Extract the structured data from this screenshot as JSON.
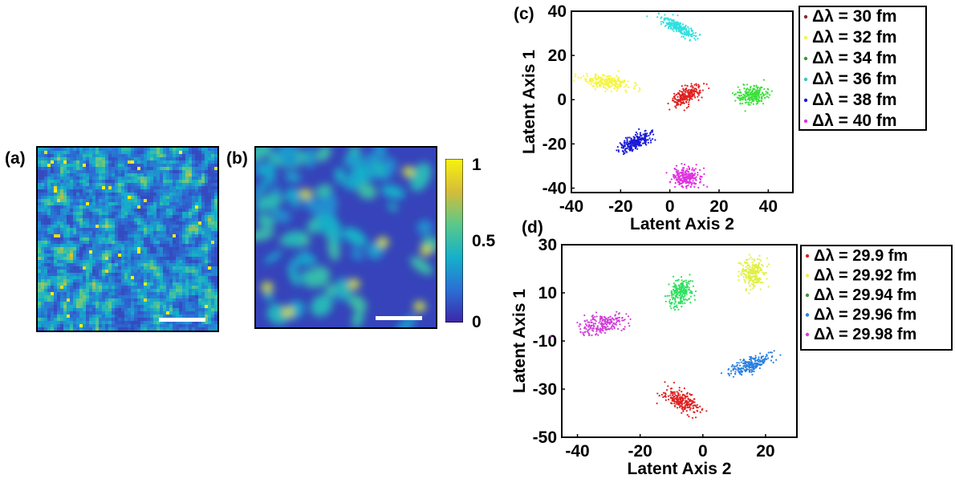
{
  "panels": {
    "a": {
      "label": "(a)"
    },
    "b": {
      "label": "(b)"
    },
    "c": {
      "label": "(c)"
    },
    "d": {
      "label": "(d)"
    }
  },
  "colorbar": {
    "ticks": [
      "1",
      "0.5",
      "0"
    ],
    "values": [
      1,
      0.5,
      0
    ],
    "colors": [
      "#3d26a8",
      "#2b6fd5",
      "#15b1c9",
      "#5bc88a",
      "#d4bd3a",
      "#f9f20e"
    ]
  },
  "chart_data": [
    {
      "type": "scatter",
      "panel": "(c)",
      "title": "",
      "xlabel": "Latent Axis 2",
      "ylabel": "Latent Axis 1",
      "xlim": [
        -40,
        50
      ],
      "ylim": [
        -42,
        40
      ],
      "xticks": [
        -40,
        -20,
        0,
        20,
        40
      ],
      "yticks": [
        40,
        20,
        0,
        -20,
        -40
      ],
      "legend_position": "right",
      "series": [
        {
          "name": "Δλ = 30 fm",
          "color": "#e02020",
          "center": [
            7,
            2
          ],
          "spread": [
            3,
            6
          ],
          "tilt": -55
        },
        {
          "name": "Δλ = 32 fm",
          "color": "#f5f53c",
          "center": [
            -26,
            8
          ],
          "spread": [
            8,
            2.5
          ],
          "tilt": -10
        },
        {
          "name": "Δλ = 34 fm",
          "color": "#3ce03c",
          "center": [
            34,
            2
          ],
          "spread": [
            5,
            3.5
          ],
          "tilt": 0
        },
        {
          "name": "Δλ = 36 fm",
          "color": "#30e0e0",
          "center": [
            3,
            33
          ],
          "spread": [
            7,
            2
          ],
          "tilt": -30
        },
        {
          "name": "Δλ = 38 fm",
          "color": "#1a1ad8",
          "center": [
            -14,
            -19
          ],
          "spread": [
            6,
            2.5
          ],
          "tilt": 30
        },
        {
          "name": "Δλ = 40 fm",
          "color": "#e030e0",
          "center": [
            7,
            -35
          ],
          "spread": [
            5,
            3.5
          ],
          "tilt": 0
        }
      ],
      "legend_dot_colors": [
        "#8b2a2a",
        "#f5f53c",
        "#3a9a3a",
        "#30c8c8",
        "#1a1ad8",
        "#e030e0"
      ]
    },
    {
      "type": "scatter",
      "panel": "(d)",
      "title": "",
      "xlabel": "Latent Axis 2",
      "ylabel": "Latent Axis 1",
      "xlim": [
        -45,
        30
      ],
      "ylim": [
        -50,
        30
      ],
      "xticks": [
        -40,
        -20,
        0,
        20
      ],
      "yticks": [
        30,
        10,
        -10,
        -30,
        -50
      ],
      "legend_position": "right",
      "series": [
        {
          "name": "Δλ = 29.9 fm",
          "color": "#e02020",
          "center": [
            -7,
            -35
          ],
          "spread": [
            5,
            3
          ],
          "tilt": -35
        },
        {
          "name": "Δλ = 29.92 fm",
          "color": "#e0f040",
          "center": [
            16,
            18
          ],
          "spread": [
            3,
            5
          ],
          "tilt": 0
        },
        {
          "name": "Δλ = 29.94 fm",
          "color": "#30e060",
          "center": [
            -7,
            10
          ],
          "spread": [
            3,
            5
          ],
          "tilt": -15
        },
        {
          "name": "Δλ = 29.96 fm",
          "color": "#2a80e0",
          "center": [
            15,
            -20
          ],
          "spread": [
            6,
            2.5
          ],
          "tilt": 30
        },
        {
          "name": "Δλ = 29.98 fm",
          "color": "#d040d8",
          "center": [
            -32,
            -3
          ],
          "spread": [
            3,
            6
          ],
          "tilt": -70
        }
      ],
      "legend_dot_colors": [
        "#e02020",
        "#f0f040",
        "#3a9a3a",
        "#2a80e0",
        "#d040d8"
      ]
    }
  ]
}
